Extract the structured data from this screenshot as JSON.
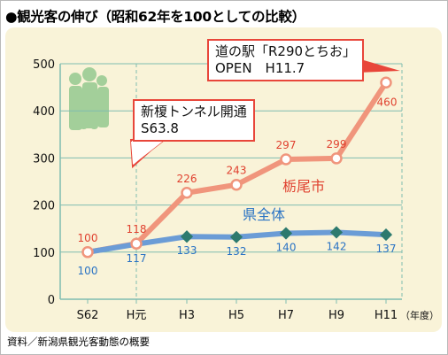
{
  "title": "●観光客の伸び（昭和62年を100としての比較）",
  "source": "資料／新潟県観光客動態の概要",
  "colors": {
    "panel": "#f9f3d8",
    "tochio_line": "#f0957c",
    "tochio_label": "#e0412f",
    "pref_line": "#6b9cd6",
    "pref_label": "#2a73c4",
    "marker": "#2d7a6e",
    "callout_border": "#e8463a",
    "grid": "#7fbcb0"
  },
  "icon": "people-family-icon",
  "chart_data": {
    "type": "line",
    "categories": [
      "S62",
      "H元",
      "H3",
      "H5",
      "H7",
      "H9",
      "H11"
    ],
    "x_unit_label": "（年度）",
    "ylim": [
      0,
      500
    ],
    "yticks": [
      0,
      100,
      200,
      300,
      400,
      500
    ],
    "grid": true,
    "series": [
      {
        "name": "栃尾市",
        "values": [
          100,
          118,
          226,
          243,
          297,
          299,
          460
        ],
        "labels": [
          "100",
          "118",
          "226",
          "243",
          "297",
          "299",
          "460"
        ]
      },
      {
        "name": "県全体",
        "values": [
          100,
          117,
          133,
          132,
          140,
          142,
          137
        ],
        "labels": [
          "100",
          "117",
          "133",
          "132",
          "140",
          "142",
          "137"
        ]
      }
    ],
    "annotations": [
      {
        "lines": [
          "新榎トンネル開通",
          "S63.8"
        ]
      },
      {
        "lines": [
          "道の駅「R290とちお」",
          "OPEN　H11.7"
        ]
      }
    ]
  }
}
